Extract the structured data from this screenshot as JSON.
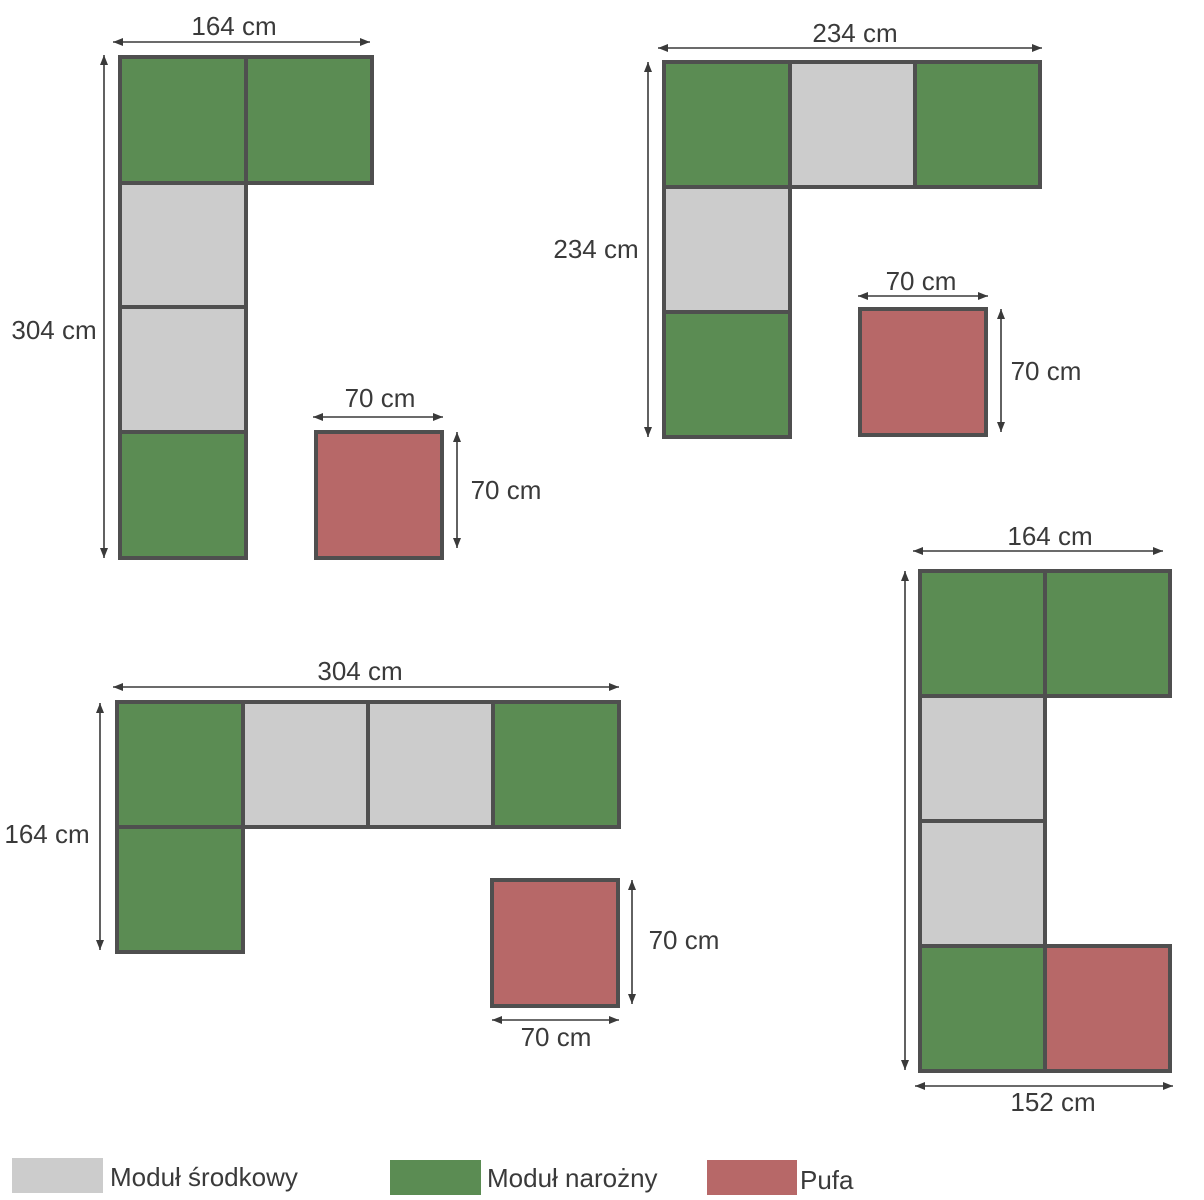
{
  "colors": {
    "outline": "#4f4f4f",
    "text": "#3a3a3a"
  },
  "legend": [
    {
      "label": "Moduł środkowy",
      "color": "#cccccc"
    },
    {
      "label": "Moduł narożny",
      "color": "#5b8c53"
    },
    {
      "label": "Pufa",
      "color": "#b76868"
    }
  ],
  "layouts": [
    {
      "width_label": "164 cm",
      "height_label": "304 cm",
      "modules": [
        1,
        1,
        0,
        0,
        1
      ],
      "pouf": {
        "module": 2,
        "width_label": "70 cm",
        "height_label": "70 cm"
      }
    },
    {
      "width_label": "234 cm",
      "height_label": "234 cm",
      "modules": [
        1,
        0,
        1,
        0,
        1
      ],
      "pouf": {
        "module": 2,
        "width_label": "70 cm",
        "height_label": "70 cm"
      }
    },
    {
      "width_label": "304 cm",
      "height_label": "164 cm",
      "modules": [
        1,
        0,
        0,
        1,
        1
      ],
      "pouf": {
        "module": 2,
        "width_label": "70 cm",
        "height_label": "70 cm"
      }
    },
    {
      "width_label": "164 cm",
      "bottom_width_label": "152 cm",
      "modules": [
        1,
        1,
        0,
        0,
        1,
        2
      ]
    }
  ]
}
